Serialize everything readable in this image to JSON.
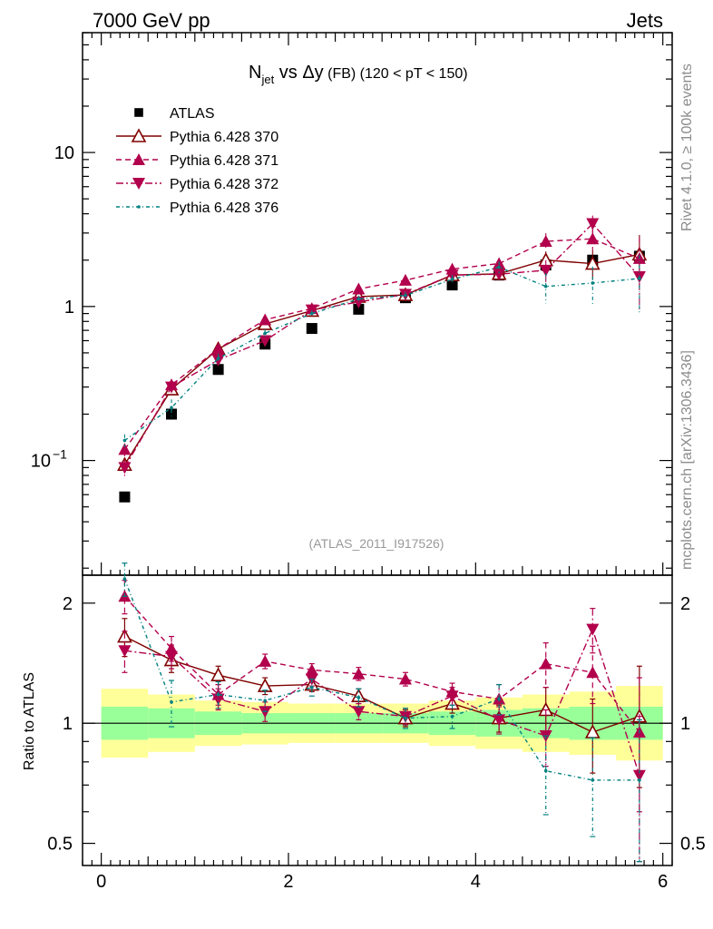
{
  "header": {
    "left": "7000 GeV pp",
    "right": "Jets"
  },
  "side": {
    "rivet": "Rivet 4.1.0, ≥ 100k events",
    "mcplots": "mcplots.cern.ch [arXiv:1306.3436]"
  },
  "chart_data": {
    "type": "scatter",
    "title": {
      "n": "N",
      "sub": "jet",
      "vs": " vs ",
      "dy": "Δy",
      "fb": " (FB)",
      "cut": " (120 < pT < 150)"
    },
    "watermark": "(ATLAS_2011_I917526)",
    "xlabel": "",
    "ylabel": "",
    "ratio_ylabel": "Ratio to ATLAS",
    "xlim": [
      -0.2,
      6.1
    ],
    "ylim_main": [
      0.018,
      60
    ],
    "ylim_ratio": [
      0.44,
      2.35
    ],
    "y_scale": "log",
    "x_ticks": [
      "0",
      "2",
      "4",
      "6"
    ],
    "y_ticks_main": {
      "ten": "10",
      "one": "1",
      "base": "10",
      "exp": "−1"
    },
    "y_ticks_ratio": [
      "2",
      "1",
      "0.5"
    ],
    "x": [
      0.25,
      0.75,
      1.25,
      1.75,
      2.25,
      2.75,
      3.25,
      3.75,
      4.25,
      4.75,
      5.25,
      5.75
    ],
    "band_inner": [
      1.1,
      1.09,
      1.07,
      1.06,
      1.06,
      1.06,
      1.06,
      1.07,
      1.08,
      1.09,
      1.1,
      1.1
    ],
    "band_outer": [
      1.22,
      1.18,
      1.14,
      1.13,
      1.12,
      1.12,
      1.12,
      1.14,
      1.16,
      1.18,
      1.2,
      1.24
    ],
    "legend_position": "top-left",
    "series": [
      {
        "name": "ATLAS",
        "style": "data",
        "color": "#000000",
        "values": [
          0.058,
          0.2,
          0.39,
          0.57,
          0.72,
          0.96,
          1.14,
          1.38,
          1.6,
          1.86,
          2.0,
          2.12
        ],
        "ratio": [
          1,
          1,
          1,
          1,
          1,
          1,
          1,
          1,
          1,
          1,
          1,
          1
        ],
        "ratio_err": [
          0,
          0,
          0,
          0,
          0,
          0,
          0,
          0,
          0,
          0,
          0,
          0
        ]
      },
      {
        "name": "Pythia 6.428 370",
        "style": "370",
        "color": "#800000",
        "values": [
          0.094,
          0.29,
          0.53,
          0.77,
          0.94,
          1.16,
          1.19,
          1.6,
          1.63,
          2.0,
          1.9,
          2.18
        ],
        "ratio": [
          1.65,
          1.44,
          1.32,
          1.24,
          1.25,
          1.17,
          1.03,
          1.12,
          1.03,
          1.08,
          0.95,
          1.04
        ],
        "ratio_err": [
          0.18,
          0.1,
          0.07,
          0.06,
          0.05,
          0.05,
          0.05,
          0.06,
          0.08,
          0.15,
          0.2,
          0.35
        ]
      },
      {
        "name": "Pythia 6.428 371",
        "style": "371",
        "color": "#b2004c",
        "values": [
          0.118,
          0.31,
          0.53,
          0.82,
          0.97,
          1.3,
          1.48,
          1.75,
          1.9,
          2.65,
          2.75,
          2.05
        ],
        "ratio": [
          2.08,
          1.54,
          1.18,
          1.43,
          1.36,
          1.33,
          1.29,
          1.2,
          1.15,
          1.41,
          1.34,
          0.95
        ],
        "ratio_err": [
          0.2,
          0.11,
          0.07,
          0.06,
          0.05,
          0.05,
          0.05,
          0.06,
          0.1,
          0.18,
          0.22,
          0.35
        ]
      },
      {
        "name": "Pythia 6.428 372",
        "style": "372",
        "color": "#b2004c",
        "values": [
          0.09,
          0.3,
          0.45,
          0.6,
          0.95,
          1.07,
          1.2,
          1.6,
          1.62,
          1.72,
          3.45,
          1.56
        ],
        "ratio": [
          1.52,
          1.47,
          1.15,
          1.07,
          1.29,
          1.07,
          1.04,
          1.17,
          1.02,
          0.93,
          1.72,
          0.74
        ],
        "ratio_err": [
          0.18,
          0.1,
          0.07,
          0.06,
          0.05,
          0.05,
          0.05,
          0.06,
          0.08,
          0.15,
          0.22,
          0.3
        ]
      },
      {
        "name": "Pythia 6.428 376",
        "style": "376",
        "color": "#008080",
        "values": [
          0.135,
          0.22,
          0.46,
          0.67,
          0.9,
          1.12,
          1.18,
          1.5,
          1.8,
          1.35,
          1.42,
          1.52
        ],
        "ratio": [
          2.3,
          1.13,
          1.18,
          1.14,
          1.23,
          1.16,
          1.03,
          1.04,
          1.15,
          0.76,
          0.72,
          0.72
        ],
        "ratio_err": [
          0.22,
          0.15,
          0.09,
          0.07,
          0.06,
          0.06,
          0.06,
          0.07,
          0.1,
          0.17,
          0.2,
          0.3
        ]
      }
    ]
  }
}
